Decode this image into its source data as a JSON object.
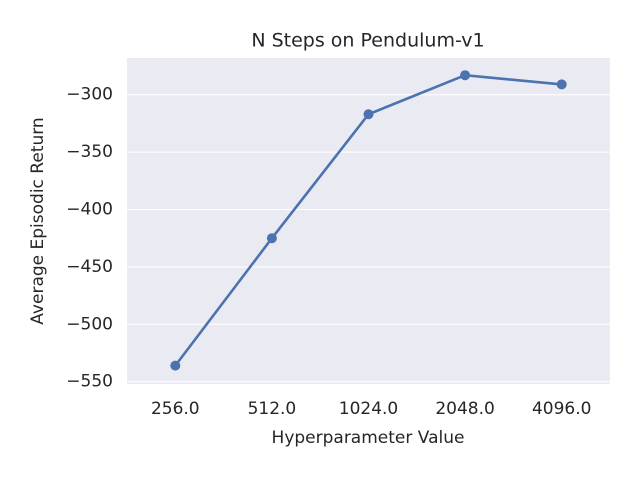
{
  "chart_data": {
    "type": "line",
    "title": "N Steps on Pendulum-v1",
    "x_label": "Hyperparameter Value",
    "y_label": "Average Episodic Return",
    "categories": [
      "256.0",
      "512.0",
      "1024.0",
      "2048.0",
      "4096.0"
    ],
    "series": [
      {
        "name": "Average Episodic Return",
        "color": "#4c72b0",
        "values": [
          -536,
          -425,
          -317,
          -283,
          -291
        ]
      }
    ],
    "ylim": [
      -552,
      -268
    ],
    "yticks": [
      {
        "value": -550,
        "label": "−550"
      },
      {
        "value": -500,
        "label": "−500"
      },
      {
        "value": -450,
        "label": "−450"
      },
      {
        "value": -400,
        "label": "−400"
      },
      {
        "value": -350,
        "label": "−350"
      },
      {
        "value": -300,
        "label": "−300"
      }
    ],
    "grid": true,
    "background": "#eaeaf2"
  }
}
